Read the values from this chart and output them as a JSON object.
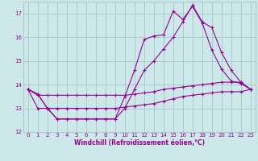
{
  "xlabel": "Windchill (Refroidissement éolien,°C)",
  "background_color": "#cce8e8",
  "line_color": "#990099",
  "grid_color": "#aacccc",
  "text_color": "#990099",
  "ylim": [
    12,
    17.5
  ],
  "xlim": [
    -0.5,
    23.5
  ],
  "yticks": [
    12,
    13,
    14,
    15,
    16,
    17
  ],
  "xticks": [
    0,
    1,
    2,
    3,
    4,
    5,
    6,
    7,
    8,
    9,
    10,
    11,
    12,
    13,
    14,
    15,
    16,
    17,
    18,
    19,
    20,
    21,
    22,
    23
  ],
  "line1_x": [
    0,
    1,
    2,
    3,
    4,
    5,
    6,
    7,
    8,
    9,
    10,
    11,
    12,
    13,
    14,
    15,
    16,
    17,
    18,
    19,
    20,
    21,
    22,
    23
  ],
  "line1_y": [
    13.8,
    13.6,
    13.0,
    12.55,
    12.55,
    12.55,
    12.55,
    12.55,
    12.55,
    12.55,
    13.5,
    14.6,
    15.9,
    16.05,
    16.1,
    17.1,
    16.75,
    17.3,
    16.6,
    15.45,
    14.65,
    14.15,
    14.05,
    13.8
  ],
  "line2_x": [
    0,
    1,
    2,
    3,
    4,
    5,
    6,
    7,
    8,
    9,
    10,
    11,
    12,
    13,
    14,
    15,
    16,
    17,
    18,
    19,
    20,
    21,
    22,
    23
  ],
  "line2_y": [
    13.8,
    13.6,
    13.0,
    12.55,
    12.55,
    12.55,
    12.55,
    12.55,
    12.55,
    12.55,
    13.0,
    13.8,
    14.6,
    15.0,
    15.5,
    16.0,
    16.65,
    17.35,
    16.65,
    16.4,
    15.35,
    14.6,
    14.1,
    13.8
  ],
  "line3_x": [
    0,
    1,
    2,
    3,
    4,
    5,
    6,
    7,
    8,
    9,
    10,
    11,
    12,
    13,
    14,
    15,
    16,
    17,
    18,
    19,
    20,
    21,
    22,
    23
  ],
  "line3_y": [
    13.8,
    13.55,
    13.55,
    13.55,
    13.55,
    13.55,
    13.55,
    13.55,
    13.55,
    13.55,
    13.55,
    13.6,
    13.65,
    13.7,
    13.8,
    13.85,
    13.9,
    13.95,
    14.0,
    14.05,
    14.1,
    14.1,
    14.1,
    13.8
  ],
  "line4_x": [
    0,
    1,
    2,
    3,
    4,
    5,
    6,
    7,
    8,
    9,
    10,
    11,
    12,
    13,
    14,
    15,
    16,
    17,
    18,
    19,
    20,
    21,
    22,
    23
  ],
  "line4_y": [
    13.8,
    13.0,
    13.0,
    13.0,
    13.0,
    13.0,
    13.0,
    13.0,
    13.0,
    13.0,
    13.05,
    13.1,
    13.15,
    13.2,
    13.3,
    13.4,
    13.5,
    13.55,
    13.6,
    13.65,
    13.7,
    13.7,
    13.7,
    13.8
  ]
}
